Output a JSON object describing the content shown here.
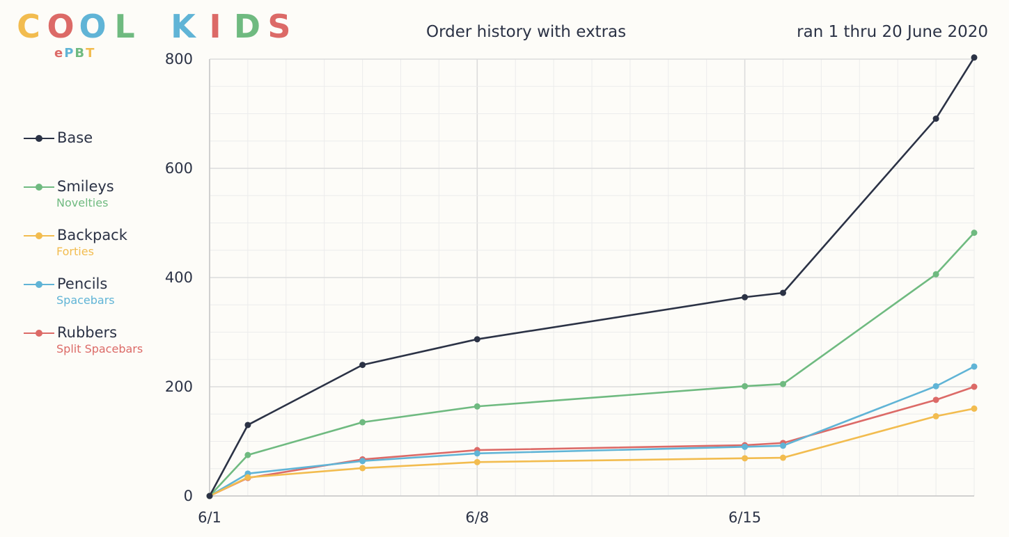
{
  "logo": {
    "text": "COOL KIDS",
    "sub_letters": [
      "e",
      "P",
      "B",
      "T"
    ],
    "letter_colors": [
      "#f2bc4f",
      "#dc6a67",
      "#60b4d6",
      "#6fba80",
      "#60b4d6",
      "#dc6a67",
      "#6fba80",
      "#dc6a67"
    ],
    "sub_colors": [
      "#dc6a67",
      "#60b4d6",
      "#6fba80",
      "#f2bc4f"
    ]
  },
  "chart_data": {
    "type": "line",
    "title": "Order history with extras",
    "subtitle": "ran 1 thru 20 June 2020",
    "xlabel": "",
    "ylabel": "",
    "x": [
      "2020-06-01",
      "2020-06-02",
      "2020-06-05",
      "2020-06-08",
      "2020-06-15",
      "2020-06-16",
      "2020-06-20",
      "2020-06-21"
    ],
    "xlim": [
      "2020-06-01",
      "2020-06-21"
    ],
    "xticks": [
      "2020-06-01",
      "2020-06-08",
      "2020-06-15"
    ],
    "xtick_labels": [
      "6/1",
      "6/8",
      "6/15"
    ],
    "ylim": [
      0,
      800
    ],
    "yticks": [
      0,
      200,
      400,
      600,
      800
    ],
    "ytick_labels": [
      "0",
      "200",
      "400",
      "600",
      "800"
    ],
    "grid": true,
    "legend_position": "left",
    "series": [
      {
        "name": "Base",
        "sublabel": "",
        "color": "#2b3245",
        "values": [
          0,
          130,
          240,
          287,
          364,
          372,
          691,
          803
        ]
      },
      {
        "name": "Smileys",
        "sublabel": "Novelties",
        "color": "#6fba80",
        "values": [
          0,
          75,
          135,
          164,
          201,
          205,
          406,
          482
        ]
      },
      {
        "name": "Backpack",
        "sublabel": "Forties",
        "color": "#f2bc4f",
        "values": [
          0,
          34,
          51,
          62,
          69,
          70,
          146,
          160
        ]
      },
      {
        "name": "Pencils",
        "sublabel": "Spacebars",
        "color": "#60b4d6",
        "values": [
          0,
          41,
          64,
          78,
          90,
          92,
          201,
          237
        ]
      },
      {
        "name": "Rubbers",
        "sublabel": "Split Spacebars",
        "color": "#dc6a67",
        "values": [
          0,
          33,
          67,
          84,
          93,
          97,
          176,
          200
        ]
      }
    ]
  }
}
